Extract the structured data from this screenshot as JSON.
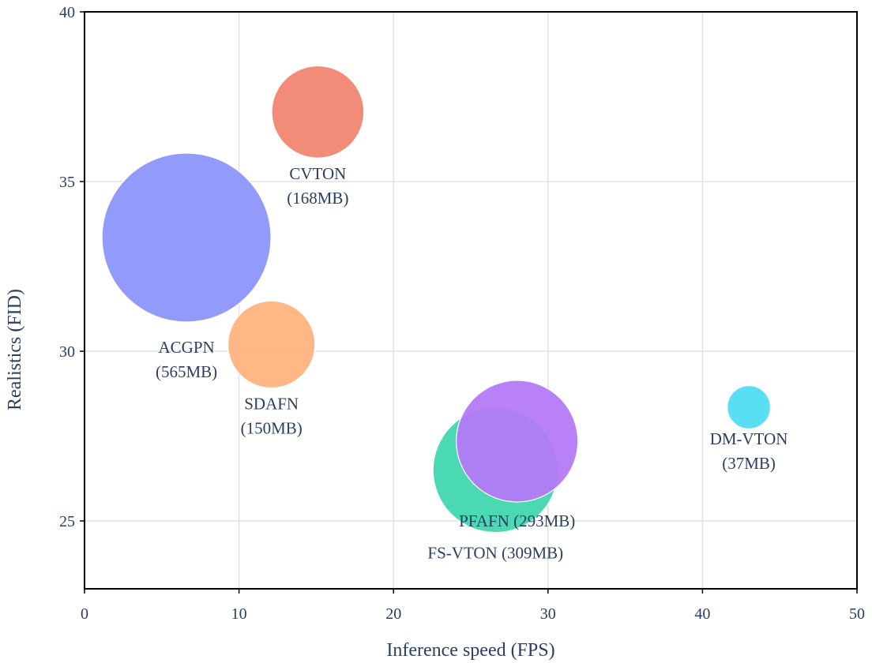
{
  "chart_data": {
    "type": "scatter",
    "subtype": "bubble",
    "xlabel": "Inference speed (FPS)",
    "ylabel": "Realistics (FID)",
    "xlim": [
      0,
      50
    ],
    "ylim": [
      23,
      40
    ],
    "xticks": [
      "0",
      "10",
      "20",
      "30",
      "40",
      "50"
    ],
    "yticks": [
      "25",
      "30",
      "35",
      "40"
    ],
    "grid": true,
    "points": [
      {
        "name": "ACGPN",
        "size": "(565MB)",
        "label_lines": [
          "ACGPN",
          "(565MB)"
        ],
        "x": 6.6,
        "y": 33.35,
        "size_mb": 565,
        "color": "#8b95fa"
      },
      {
        "name": "CVTON",
        "size": "(168MB)",
        "label_lines": [
          "CVTON",
          "(168MB)"
        ],
        "x": 15.1,
        "y": 37.05,
        "size_mb": 168,
        "color": "#f1846f"
      },
      {
        "name": "SDAFN",
        "size": "(150MB)",
        "label_lines": [
          "SDAFN",
          "(150MB)"
        ],
        "x": 12.1,
        "y": 30.2,
        "size_mb": 150,
        "color": "#ffb27e"
      },
      {
        "name": "FS-VTON",
        "size": "(309MB)",
        "label_lines": [
          "FS-VTON (309MB)"
        ],
        "x": 26.6,
        "y": 26.5,
        "size_mb": 309,
        "color": "#3fd7ae"
      },
      {
        "name": "PFAFN",
        "size": "(293MB)",
        "label_lines": [
          "PFAFN (293MB)"
        ],
        "x": 28.0,
        "y": 27.35,
        "size_mb": 293,
        "color": "#b579f7"
      },
      {
        "name": "DM-VTON",
        "size": "(37MB)",
        "label_lines": [
          "DM-VTON",
          "(37MB)"
        ],
        "x": 43.0,
        "y": 28.35,
        "size_mb": 37,
        "color": "#4fdcf3"
      }
    ]
  }
}
